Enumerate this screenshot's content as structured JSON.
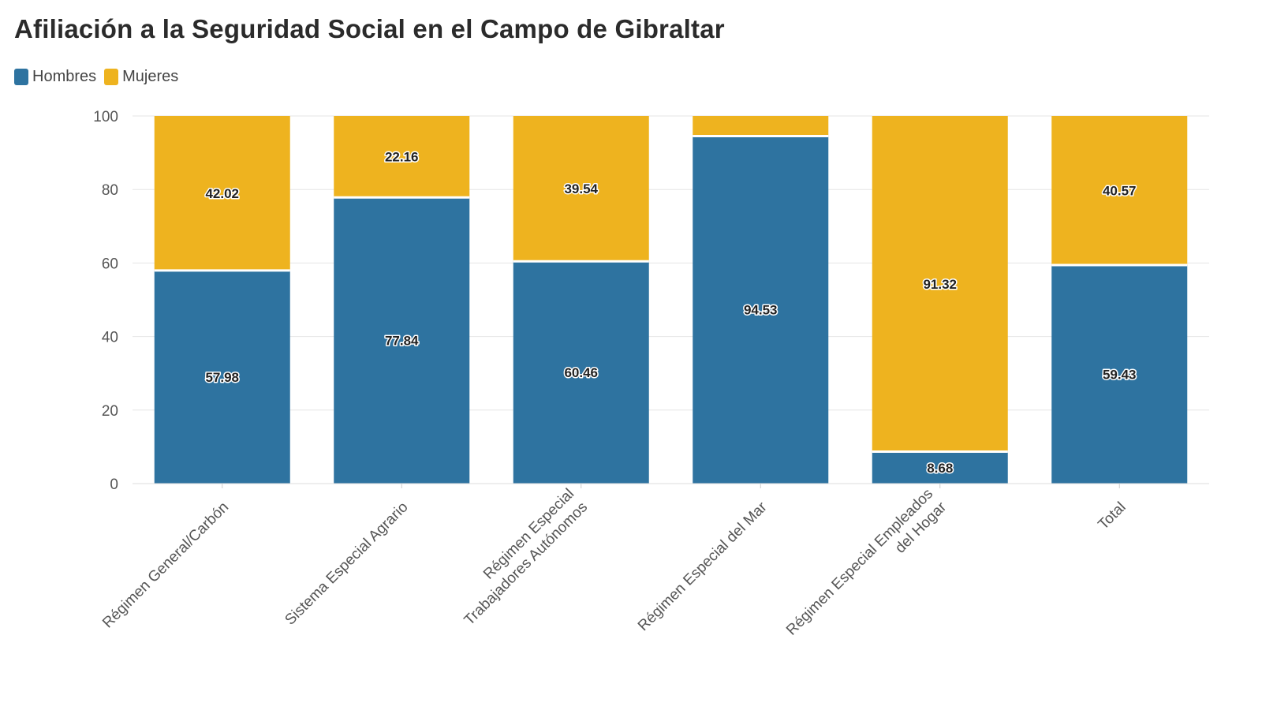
{
  "chart_data": {
    "type": "bar",
    "stacked": true,
    "title": "Afiliación a la Seguridad Social en el Campo de Gibraltar",
    "categories": [
      [
        "Régimen General/Carbón"
      ],
      [
        "Sistema Especial Agrario"
      ],
      [
        "Régimen Especial",
        "Trabajadores Autónomos"
      ],
      [
        "Régimen Especial del Mar"
      ],
      [
        "Régimen Especial Empleados",
        "del Hogar"
      ],
      [
        "Total"
      ]
    ],
    "series": [
      {
        "name": "Hombres",
        "color": "#2e73a0",
        "values": [
          57.98,
          77.84,
          60.46,
          94.53,
          8.68,
          59.43
        ],
        "labels": [
          "57.98",
          "77.84",
          "60.46",
          "94.53",
          "8.68",
          "59.43"
        ]
      },
      {
        "name": "Mujeres",
        "color": "#eeb31f",
        "values": [
          42.02,
          22.16,
          39.54,
          5.47,
          91.32,
          40.57
        ],
        "labels": [
          "42.02",
          "22.16",
          "39.54",
          "",
          "91.32",
          "40.57"
        ]
      }
    ],
    "yticks": [
      "0",
      "20",
      "40",
      "60",
      "80",
      "100"
    ],
    "ylim": [
      0,
      100
    ],
    "grid": true,
    "legend": "top-left"
  }
}
